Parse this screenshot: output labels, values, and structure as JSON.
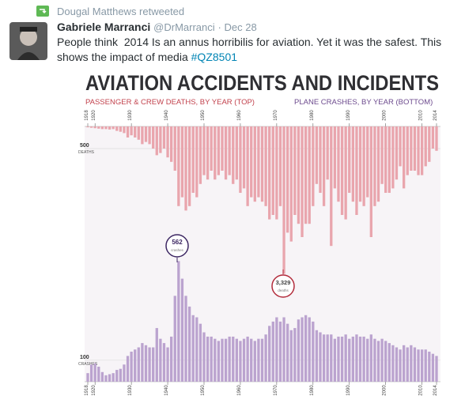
{
  "tweet": {
    "retweeted_by": "Dougal Matthews retweeted",
    "author_name": "Gabriele Marranci",
    "handle": "@DrMarranci",
    "date": "· Dec 28",
    "text": "People think  2014 Is an annus horribilis for aviation. Yet it was the safest. This shows the impact of media ",
    "hashtag": "#QZ8501"
  },
  "chart_data": [
    {
      "type": "bar",
      "title": "AVIATION ACCIDENTS AND INCIDENTS",
      "subtitle": "PASSENGER & CREW DEATHS, BY YEAR (TOP)",
      "color": "#e9a5ad",
      "y_inverted": true,
      "yunit": "DEATHS",
      "annotation": {
        "label": "3,329",
        "note": "deaths"
      },
      "x": [
        1918,
        1919,
        1920,
        1921,
        1922,
        1923,
        1924,
        1925,
        1926,
        1927,
        1928,
        1929,
        1930,
        1931,
        1932,
        1933,
        1934,
        1935,
        1936,
        1937,
        1938,
        1939,
        1940,
        1941,
        1942,
        1943,
        1944,
        1945,
        1946,
        1947,
        1948,
        1949,
        1950,
        1951,
        1952,
        1953,
        1954,
        1955,
        1956,
        1957,
        1958,
        1959,
        1960,
        1961,
        1962,
        1963,
        1964,
        1965,
        1966,
        1967,
        1968,
        1969,
        1970,
        1971,
        1972,
        1973,
        1974,
        1975,
        1976,
        1977,
        1978,
        1979,
        1980,
        1981,
        1982,
        1983,
        1984,
        1985,
        1986,
        1987,
        1988,
        1989,
        1990,
        1991,
        1992,
        1993,
        1994,
        1995,
        1996,
        1997,
        1998,
        1999,
        2000,
        2001,
        2002,
        2003,
        2004,
        2005,
        2006,
        2007,
        2008,
        2009,
        2010,
        2011,
        2012,
        2013,
        2014
      ],
      "values": [
        20,
        30,
        40,
        50,
        60,
        60,
        70,
        60,
        100,
        120,
        150,
        250,
        200,
        250,
        300,
        400,
        350,
        400,
        500,
        650,
        600,
        500,
        700,
        800,
        1000,
        1800,
        1600,
        1900,
        1800,
        1500,
        1600,
        1300,
        1100,
        1200,
        1000,
        1200,
        1100,
        1000,
        1200,
        1100,
        1300,
        1200,
        1500,
        1400,
        1800,
        1600,
        1700,
        1600,
        1700,
        1800,
        2100,
        2000,
        2100,
        1800,
        3329,
        2400,
        2600,
        2000,
        2200,
        2500,
        2200,
        2200,
        1800,
        1300,
        1500,
        1800,
        1200,
        2700,
        1400,
        1700,
        2000,
        2100,
        1500,
        1700,
        2000,
        1700,
        1800,
        1600,
        2500,
        1800,
        1700,
        1300,
        1500,
        1500,
        1400,
        1200,
        900,
        1400,
        1100,
        1000,
        1000,
        1100,
        1100,
        900,
        800,
        500,
        550
      ],
      "xlim": [
        1918,
        2014
      ],
      "xticks": [
        1918,
        1920,
        1930,
        1940,
        1950,
        1960,
        1970,
        1980,
        1990,
        2000,
        2010,
        2014
      ],
      "ylim": [
        0,
        3500
      ],
      "yticks": [
        500
      ]
    },
    {
      "type": "bar",
      "subtitle": "PLANE CRASHES, BY YEAR (BOTTOM)",
      "color": "#bba3cf",
      "yunit": "CRASHES",
      "annotation": {
        "label": "562",
        "note": "crashes"
      },
      "x": [
        1918,
        1919,
        1920,
        1921,
        1922,
        1923,
        1924,
        1925,
        1926,
        1927,
        1928,
        1929,
        1930,
        1931,
        1932,
        1933,
        1934,
        1935,
        1936,
        1937,
        1938,
        1939,
        1940,
        1941,
        1942,
        1943,
        1944,
        1945,
        1946,
        1947,
        1948,
        1949,
        1950,
        1951,
        1952,
        1953,
        1954,
        1955,
        1956,
        1957,
        1958,
        1959,
        1960,
        1961,
        1962,
        1963,
        1964,
        1965,
        1966,
        1967,
        1968,
        1969,
        1970,
        1971,
        1972,
        1973,
        1974,
        1975,
        1976,
        1977,
        1978,
        1979,
        1980,
        1981,
        1982,
        1983,
        1984,
        1985,
        1986,
        1987,
        1988,
        1989,
        1990,
        1991,
        1992,
        1993,
        1994,
        1995,
        1996,
        1997,
        1998,
        1999,
        2000,
        2001,
        2002,
        2003,
        2004,
        2005,
        2006,
        2007,
        2008,
        2009,
        2010,
        2011,
        2012,
        2013,
        2014
      ],
      "values": [
        40,
        80,
        85,
        70,
        45,
        30,
        35,
        40,
        55,
        60,
        80,
        120,
        140,
        150,
        160,
        180,
        170,
        160,
        160,
        250,
        200,
        180,
        160,
        210,
        400,
        562,
        480,
        400,
        350,
        310,
        300,
        270,
        230,
        210,
        210,
        200,
        190,
        200,
        200,
        210,
        210,
        200,
        190,
        200,
        210,
        200,
        190,
        200,
        200,
        220,
        260,
        280,
        300,
        280,
        300,
        270,
        240,
        250,
        290,
        300,
        310,
        300,
        280,
        240,
        230,
        220,
        220,
        220,
        200,
        210,
        210,
        220,
        200,
        210,
        220,
        210,
        210,
        200,
        220,
        200,
        190,
        200,
        190,
        180,
        170,
        160,
        150,
        170,
        160,
        170,
        160,
        150,
        150,
        150,
        140,
        130,
        120
      ],
      "xlim": [
        1918,
        2014
      ],
      "xticks": [
        1918,
        1920,
        1930,
        1940,
        1950,
        1960,
        1970,
        1980,
        1990,
        2000,
        2010,
        2014
      ],
      "ylim": [
        0,
        600
      ],
      "yticks": [
        100
      ]
    }
  ]
}
